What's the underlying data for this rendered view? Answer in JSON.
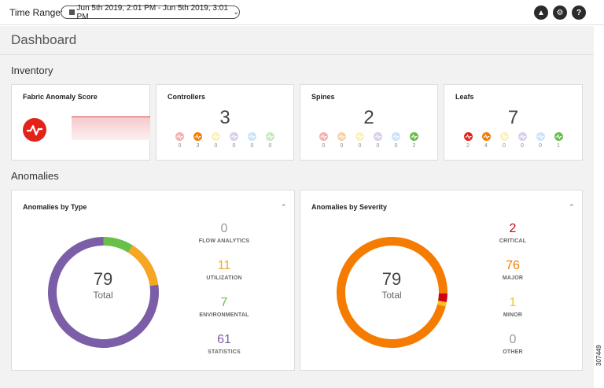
{
  "topbar": {
    "time_range_label": "Time Range:",
    "time_range_value": "Jun 5th 2019, 2:01 PM - Jun 5th 2019, 3:01 PM",
    "icons": [
      "alert-icon",
      "gear-icon",
      "help-icon"
    ]
  },
  "page": {
    "title": "Dashboard"
  },
  "inventory": {
    "title": "Inventory",
    "anomaly_score": {
      "title": "Fabric Anomaly Score",
      "color": "#e2231a"
    },
    "controllers": {
      "title": "Controllers",
      "count": "3",
      "health": [
        "0",
        "3",
        "0",
        "0",
        "0",
        "0"
      ]
    },
    "spines": {
      "title": "Spines",
      "count": "2",
      "health": [
        "0",
        "0",
        "0",
        "0",
        "0",
        "2"
      ]
    },
    "leafs": {
      "title": "Leafs",
      "count": "7",
      "health": [
        "2",
        "4",
        "0",
        "0",
        "0",
        "1"
      ]
    },
    "health_colors": [
      "#e2231a",
      "#f57c00",
      "#fdd835",
      "#9575cd",
      "#64b5f6",
      "#6abf4b"
    ]
  },
  "anomalies": {
    "title": "Anomalies",
    "by_type": {
      "title": "Anomalies by Type",
      "total": "79",
      "total_label": "Total",
      "items": [
        {
          "value": "0",
          "label": "FLOW ANALYTICS",
          "color": "#999999"
        },
        {
          "value": "11",
          "label": "UTILIZATION",
          "color": "#f5a623"
        },
        {
          "value": "7",
          "label": "ENVIRONMENTAL",
          "color": "#6abf4b"
        },
        {
          "value": "61",
          "label": "STATISTICS",
          "color": "#7b5ea7"
        }
      ]
    },
    "by_severity": {
      "title": "Anomalies by Severity",
      "total": "79",
      "total_label": "Total",
      "items": [
        {
          "value": "2",
          "label": "CRITICAL",
          "color": "#d0021b"
        },
        {
          "value": "76",
          "label": "MAJOR",
          "color": "#f57c00"
        },
        {
          "value": "1",
          "label": "MINOR",
          "color": "#f5c518"
        },
        {
          "value": "0",
          "label": "OTHER",
          "color": "#999999"
        }
      ]
    }
  },
  "figure_number": "307449"
}
